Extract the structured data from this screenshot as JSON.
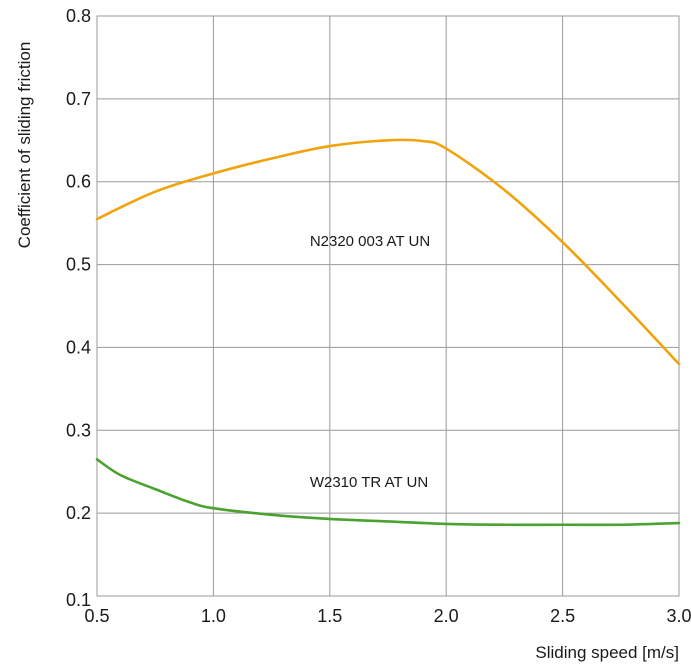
{
  "chart_data": {
    "type": "line",
    "title": "",
    "xlabel": "Sliding speed [m/s]",
    "ylabel": "Coefficient of sliding friction",
    "xlim": [
      0.5,
      3.0
    ],
    "ylim": [
      0.1,
      0.8
    ],
    "x_ticks": [
      "0.5",
      "1.0",
      "1.5",
      "2.0",
      "2.5",
      "3.0"
    ],
    "y_ticks": [
      "0.1",
      "0.2",
      "0.3",
      "0.4",
      "0.5",
      "0.6",
      "0.7",
      "0.8"
    ],
    "x_tick_values": [
      0.5,
      1.0,
      1.5,
      2.0,
      2.5,
      3.0
    ],
    "y_tick_values": [
      0.1,
      0.2,
      0.3,
      0.4,
      0.5,
      0.6,
      0.7,
      0.8
    ],
    "grid": true,
    "legend": "none",
    "series": [
      {
        "name": "N2320 003 AT UN",
        "color": "#f0a30a",
        "points": [
          [
            0.5,
            0.555
          ],
          [
            0.75,
            0.588
          ],
          [
            1.0,
            0.61
          ],
          [
            1.25,
            0.628
          ],
          [
            1.5,
            0.643
          ],
          [
            1.75,
            0.65
          ],
          [
            1.9,
            0.649
          ],
          [
            2.0,
            0.64
          ],
          [
            2.25,
            0.59
          ],
          [
            2.5,
            0.527
          ],
          [
            2.75,
            0.455
          ],
          [
            3.0,
            0.38
          ]
        ]
      },
      {
        "name": "W2310 TR AT UN",
        "color": "#4aa22f",
        "points": [
          [
            0.5,
            0.265
          ],
          [
            0.6,
            0.246
          ],
          [
            0.75,
            0.229
          ],
          [
            0.9,
            0.213
          ],
          [
            1.0,
            0.206
          ],
          [
            1.25,
            0.198
          ],
          [
            1.5,
            0.193
          ],
          [
            1.75,
            0.19
          ],
          [
            2.0,
            0.187
          ],
          [
            2.25,
            0.186
          ],
          [
            2.5,
            0.186
          ],
          [
            2.75,
            0.186
          ],
          [
            3.0,
            0.188
          ]
        ]
      }
    ]
  }
}
